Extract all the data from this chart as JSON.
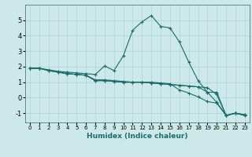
{
  "title": "",
  "xlabel": "Humidex (Indice chaleur)",
  "ylabel": "",
  "bg_color": "#cce8e8",
  "line_color": "#1a6b6b",
  "xlim": [
    -0.5,
    23.5
  ],
  "ylim": [
    -1.6,
    6.0
  ],
  "xticks": [
    0,
    1,
    2,
    3,
    4,
    5,
    6,
    7,
    8,
    9,
    10,
    11,
    12,
    13,
    14,
    15,
    16,
    17,
    18,
    19,
    20,
    21,
    22,
    23
  ],
  "yticks": [
    -1,
    0,
    1,
    2,
    3,
    4,
    5
  ],
  "lines": [
    {
      "x": [
        0,
        1,
        2,
        3,
        4,
        5,
        6,
        7,
        8,
        9,
        10,
        11,
        12,
        13,
        14,
        15,
        16,
        17,
        18,
        19,
        20,
        21,
        22,
        23
      ],
      "y": [
        1.9,
        1.9,
        1.8,
        1.7,
        1.65,
        1.6,
        1.55,
        1.5,
        2.05,
        1.75,
        2.7,
        4.35,
        4.9,
        5.3,
        4.6,
        4.5,
        3.6,
        2.3,
        1.1,
        0.35,
        0.35,
        -1.15,
        -1.0,
        -1.1
      ]
    },
    {
      "x": [
        0,
        1,
        2,
        3,
        4,
        5,
        6,
        7,
        8,
        9,
        10,
        11,
        12,
        13,
        14,
        15,
        16,
        17,
        18,
        19,
        20,
        21,
        22,
        23
      ],
      "y": [
        1.9,
        1.9,
        1.75,
        1.65,
        1.55,
        1.5,
        1.45,
        1.1,
        1.1,
        1.05,
        1.0,
        1.0,
        1.0,
        0.95,
        0.9,
        0.85,
        0.8,
        0.75,
        0.7,
        0.65,
        0.2,
        -1.15,
        -1.0,
        -1.1
      ]
    },
    {
      "x": [
        0,
        1,
        2,
        3,
        4,
        5,
        6,
        7,
        8,
        9,
        10,
        11,
        12,
        13,
        14,
        15,
        16,
        17,
        18,
        19,
        20,
        21,
        22,
        23
      ],
      "y": [
        1.9,
        1.9,
        1.75,
        1.65,
        1.55,
        1.5,
        1.45,
        1.1,
        1.1,
        1.05,
        1.0,
        1.0,
        1.0,
        0.95,
        0.9,
        0.85,
        0.8,
        0.75,
        0.7,
        0.35,
        -0.3,
        -1.15,
        -1.0,
        -1.15
      ]
    },
    {
      "x": [
        0,
        1,
        2,
        3,
        4,
        5,
        6,
        7,
        8,
        9,
        10,
        11,
        12,
        13,
        14,
        15,
        16,
        17,
        18,
        19,
        20,
        21,
        22,
        23
      ],
      "y": [
        1.9,
        1.9,
        1.75,
        1.65,
        1.55,
        1.5,
        1.45,
        1.15,
        1.15,
        1.1,
        1.05,
        1.0,
        1.0,
        1.0,
        0.95,
        0.9,
        0.5,
        0.3,
        0.05,
        -0.25,
        -0.35,
        -1.15,
        -1.0,
        -1.15
      ]
    }
  ]
}
